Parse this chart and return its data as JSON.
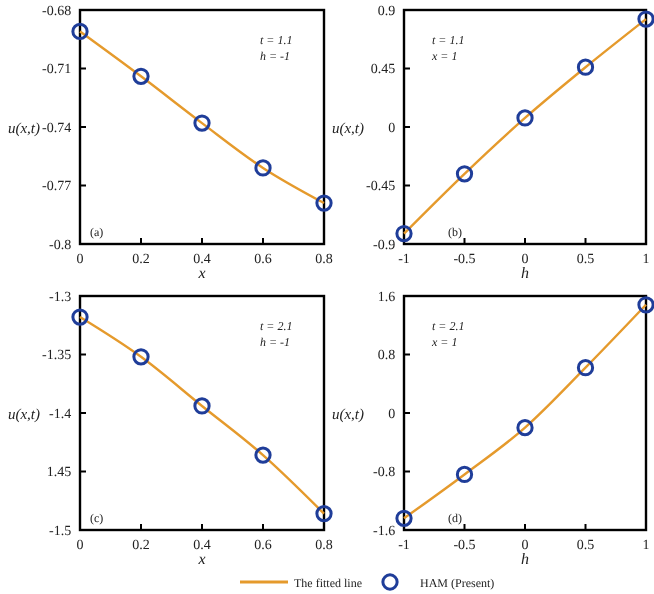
{
  "chart_data": [
    {
      "type": "line",
      "xlabel": "x",
      "ylabel": "u(x,t)",
      "xlim": [
        0,
        0.8
      ],
      "xticks": [
        0,
        0.2,
        0.4,
        0.6,
        0.8
      ],
      "ylim": [
        -0.8,
        -0.68
      ],
      "yticks": [
        -0.8,
        -0.77,
        -0.74,
        -0.71,
        -0.68
      ],
      "legend": "bottom",
      "annotations": [
        "t = 1.1",
        "h = -1",
        "(a)"
      ],
      "x": [
        0,
        0.2,
        0.4,
        0.6,
        0.8
      ],
      "series": [
        {
          "name": "The fitted line",
          "color": "#e59a2c",
          "values": [
            -0.691,
            -0.714,
            -0.738,
            -0.761,
            -0.779
          ]
        },
        {
          "type": "scatter",
          "name": "HAM (Present)",
          "color": "#1f3d99",
          "marker": "circle",
          "values": [
            -0.691,
            -0.714,
            -0.738,
            -0.761,
            -0.779
          ]
        }
      ]
    },
    {
      "type": "line",
      "xlabel": "h",
      "ylabel": "u(x,t)",
      "xlim": [
        -1,
        1
      ],
      "xticks": [
        -1,
        -0.5,
        0,
        0.5,
        1
      ],
      "ylim": [
        -0.9,
        0.9
      ],
      "yticks": [
        -0.9,
        -0.45,
        0,
        0.45,
        0.9
      ],
      "annotations": [
        "t = 1.1",
        "x = 1",
        "(b)"
      ],
      "x": [
        -1,
        -0.5,
        0,
        0.5,
        1
      ],
      "series": [
        {
          "color": "#e59a2c",
          "values": [
            -0.82,
            -0.36,
            0.07,
            0.46,
            0.83
          ]
        },
        {
          "type": "scatter",
          "color": "#1f3d99",
          "marker": "circle",
          "values": [
            -0.82,
            -0.36,
            0.07,
            0.46,
            0.83
          ]
        }
      ]
    },
    {
      "type": "line",
      "xlabel": "x",
      "ylabel": "u(x,t)",
      "xlim": [
        0,
        0.8
      ],
      "xticks": [
        0,
        0.2,
        0.4,
        0.6,
        0.8
      ],
      "ylim": [
        -1.5,
        -1.3
      ],
      "yticks": [
        -1.5,
        {
          "value": -1.45,
          "label": "1.45"
        },
        -1.4,
        -1.35,
        -1.3
      ],
      "annotations": [
        "t = 2.1",
        "h = -1",
        "(c)"
      ],
      "x": [
        0,
        0.2,
        0.4,
        0.6,
        0.8
      ],
      "series": [
        {
          "color": "#e59a2c",
          "values": [
            -1.318,
            -1.352,
            -1.394,
            -1.436,
            -1.486
          ]
        },
        {
          "type": "scatter",
          "color": "#1f3d99",
          "marker": "circle",
          "values": [
            -1.318,
            -1.352,
            -1.394,
            -1.436,
            -1.486
          ]
        }
      ]
    },
    {
      "type": "line",
      "xlabel": "h",
      "ylabel": "u(x,t)",
      "xlim": [
        -1,
        1
      ],
      "xticks": [
        -1,
        -0.5,
        0,
        0.5,
        1
      ],
      "ylim": [
        -1.6,
        1.6
      ],
      "yticks": [
        -1.6,
        -0.8,
        0,
        0.8,
        1.6
      ],
      "annotations": [
        "t = 2.1",
        "x = 1",
        "(d)"
      ],
      "x": [
        -1,
        -0.5,
        0,
        0.5,
        1
      ],
      "series": [
        {
          "color": "#e59a2c",
          "values": [
            -1.44,
            -0.84,
            -0.2,
            0.62,
            1.48
          ]
        },
        {
          "type": "scatter",
          "color": "#1f3d99",
          "marker": "circle",
          "values": [
            -1.44,
            -0.84,
            -0.2,
            0.62,
            1.48
          ]
        }
      ]
    }
  ]
}
